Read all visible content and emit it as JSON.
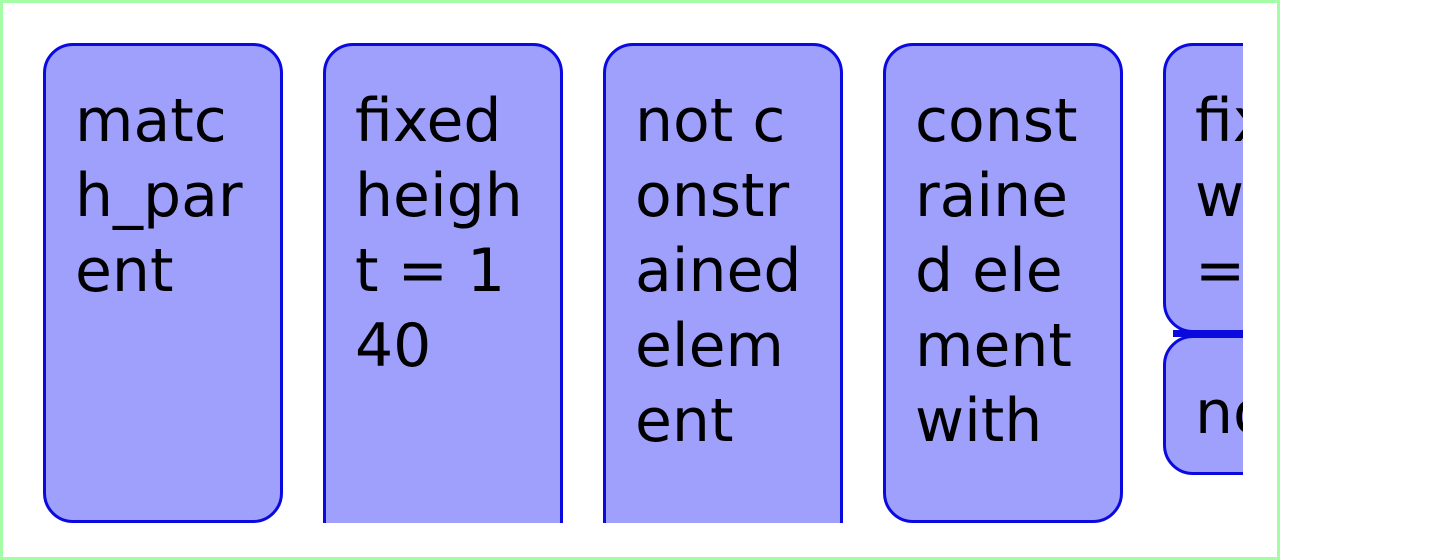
{
  "colors": {
    "frame_border": "#a4fca4",
    "card_fill": "#9fa0fc",
    "card_border": "#0a0adf",
    "text": "#000000"
  },
  "cards": [
    {
      "label": "match_parent"
    },
    {
      "label": "fixed height = 140"
    },
    {
      "label": "not constrained element"
    },
    {
      "label": "constrained element with"
    },
    {
      "label": "fixed width ="
    },
    {
      "label": "no"
    }
  ]
}
